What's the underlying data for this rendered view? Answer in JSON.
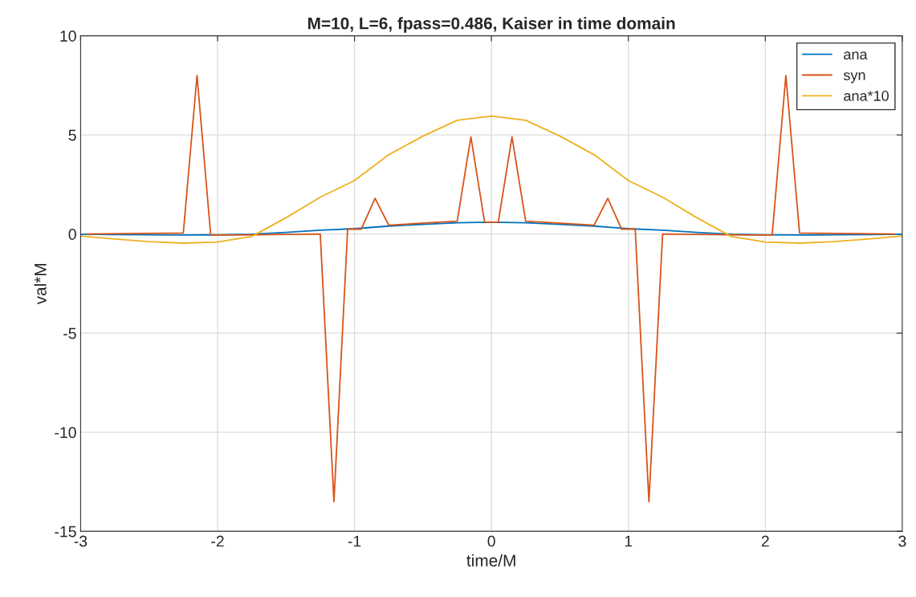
{
  "chart_data": {
    "type": "line",
    "title": "M=10, L=6, fpass=0.486, Kaiser in time domain",
    "xlabel": "time/M",
    "ylabel": "val*M",
    "xlim": [
      -3,
      3
    ],
    "xticks": [
      -3,
      -2,
      -1,
      0,
      1,
      2,
      3
    ],
    "ylim": [
      -15,
      10
    ],
    "yticks": [
      -15,
      -10,
      -5,
      0,
      5,
      10
    ],
    "grid": true,
    "legend": "top right",
    "marker": "none",
    "line_style": "solid",
    "series": [
      {
        "name": "ana",
        "color": "#0072bd",
        "x": [
          -3,
          -2.75,
          -2.5,
          -2.25,
          -2,
          -1.75,
          -1.5,
          -1.25,
          -1,
          -0.75,
          -0.5,
          -0.25,
          0,
          0.25,
          0.5,
          0.75,
          1,
          1.25,
          1.5,
          1.75,
          2,
          2.25,
          2.5,
          2.75,
          3
        ],
        "values": [
          -0.01,
          -0.03,
          -0.04,
          -0.05,
          -0.04,
          -0.01,
          0.08,
          0.19,
          0.27,
          0.4,
          0.49,
          0.57,
          0.6,
          0.57,
          0.49,
          0.4,
          0.27,
          0.19,
          0.08,
          -0.01,
          -0.04,
          -0.05,
          -0.04,
          -0.03,
          -0.01
        ]
      },
      {
        "name": "syn",
        "color": "#d95319",
        "x": [
          -2.95,
          -2.25,
          -2.15,
          -2.05,
          -1.85,
          -1.25,
          -1.15,
          -1.05,
          -0.95,
          -0.85,
          -0.75,
          -0.25,
          -0.15,
          -0.05,
          0.05,
          0.15,
          0.25,
          0.75,
          0.85,
          0.95,
          1.05,
          1.15,
          1.25,
          1.85,
          2.05,
          2.15,
          2.25,
          2.95
        ],
        "values": [
          0,
          0.05,
          8,
          -0.05,
          -0.05,
          0,
          -13.5,
          0.25,
          0.25,
          1.8,
          0.45,
          0.65,
          4.9,
          0.6,
          0.6,
          4.9,
          0.65,
          0.45,
          1.8,
          0.25,
          0.25,
          -13.5,
          0,
          -0.05,
          -0.05,
          8,
          0.05,
          0
        ]
      },
      {
        "name": "ana*10",
        "color": "#edb120",
        "x": [
          -3,
          -2.75,
          -2.5,
          -2.25,
          -2,
          -1.75,
          -1.5,
          -1.25,
          -1,
          -0.75,
          -0.5,
          -0.25,
          0,
          0.25,
          0.5,
          0.75,
          1,
          1.25,
          1.5,
          1.75,
          2,
          2.25,
          2.5,
          2.75,
          3
        ],
        "values": [
          -0.1,
          -0.25,
          -0.38,
          -0.46,
          -0.4,
          -0.12,
          0.82,
          1.86,
          2.7,
          4.0,
          4.94,
          5.74,
          5.95,
          5.74,
          4.94,
          4.0,
          2.7,
          1.86,
          0.82,
          -0.12,
          -0.4,
          -0.46,
          -0.38,
          -0.25,
          -0.1
        ]
      }
    ]
  }
}
